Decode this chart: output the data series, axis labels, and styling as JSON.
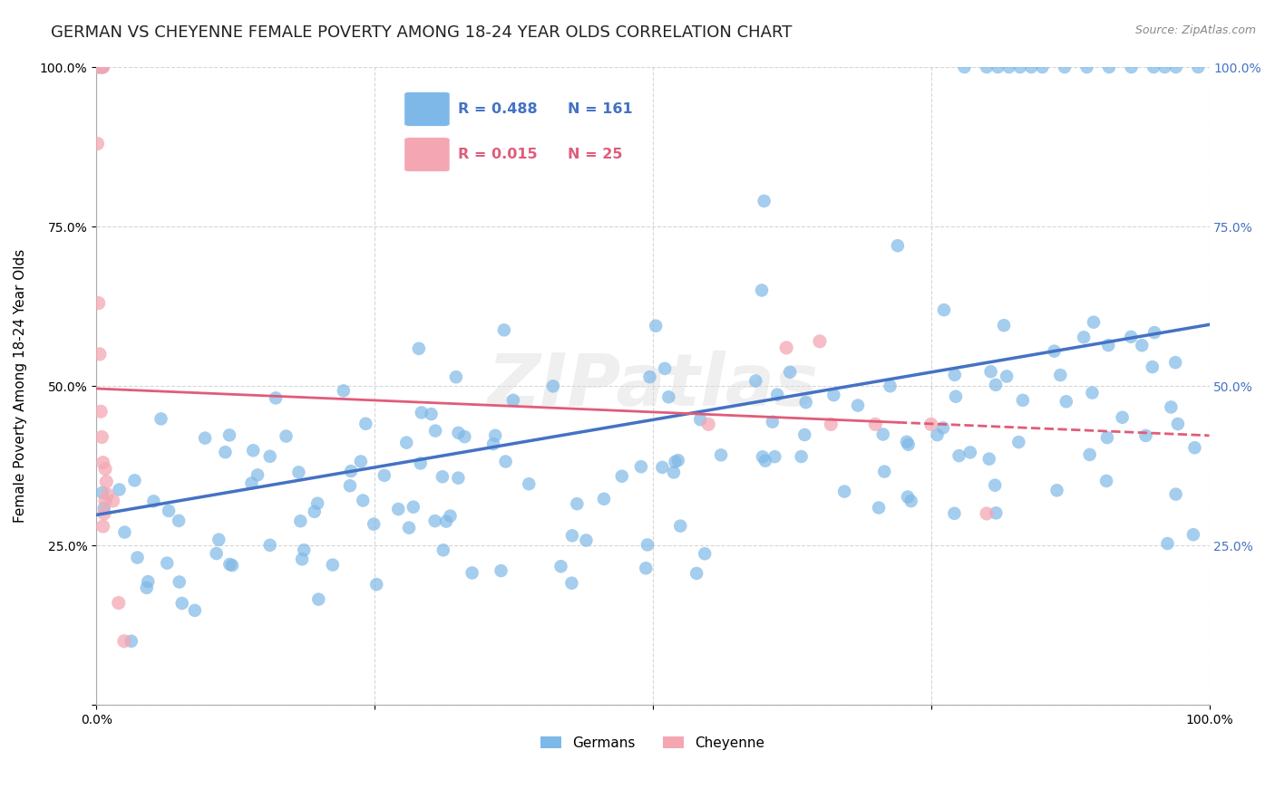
{
  "title": "GERMAN VS CHEYENNE FEMALE POVERTY AMONG 18-24 YEAR OLDS CORRELATION CHART",
  "source": "Source: ZipAtlas.com",
  "ylabel": "Female Poverty Among 18-24 Year Olds",
  "german_color": "#7EB8E8",
  "cheyenne_color": "#F4A7B3",
  "german_line_color": "#4472C4",
  "cheyenne_line_color": "#E05C7A",
  "watermark": "ZIPatlas",
  "legend_r_german": "R = 0.488",
  "legend_n_german": "N = 161",
  "legend_r_cheyenne": "R = 0.015",
  "legend_n_cheyenne": "N = 25",
  "german_r": 0.488,
  "cheyenne_r": 0.015,
  "background_color": "#FFFFFF",
  "grid_color": "#CCCCCC"
}
